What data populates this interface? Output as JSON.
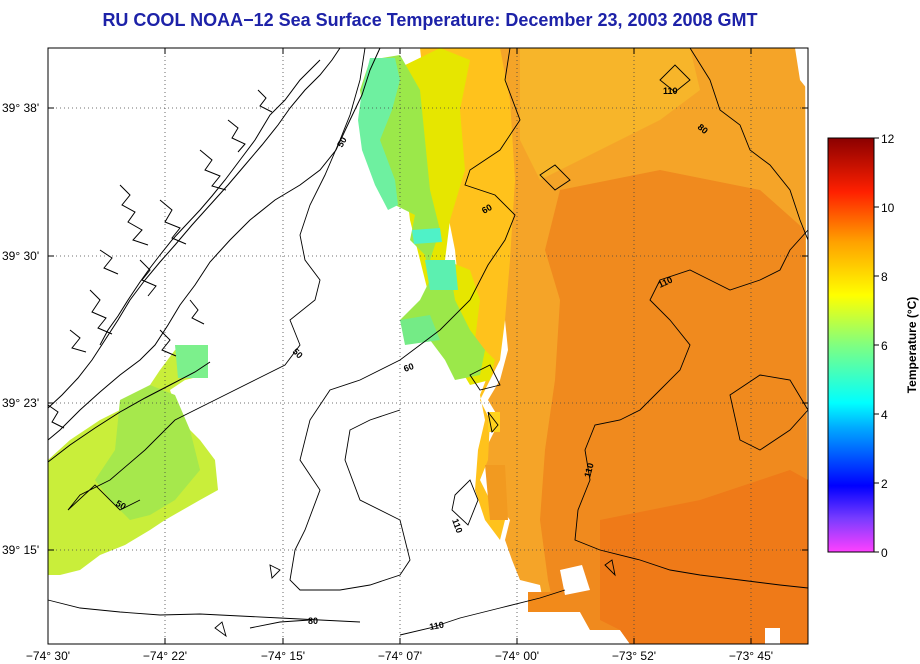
{
  "title": "RU COOL  NOAA−12  Sea Surface Temperature:  December 23, 2003 2008 GMT",
  "lat_labels": [
    "39° 38'",
    "39° 30'",
    "39° 23'",
    "39° 15'"
  ],
  "lon_labels": [
    "−74° 30'",
    "−74° 22'",
    "−74° 15'",
    "−74° 07'",
    "−74° 00'",
    "−73° 52'",
    "−73° 45'"
  ],
  "contour_labels": [
    "50",
    "50",
    "50",
    "60",
    "60",
    "80",
    "80",
    "110",
    "110",
    "110",
    "110",
    "110"
  ],
  "colorbar": {
    "ticks": [
      "12",
      "10",
      "8",
      "6",
      "4",
      "2",
      "0"
    ],
    "label": "Temperature (°C)"
  }
}
